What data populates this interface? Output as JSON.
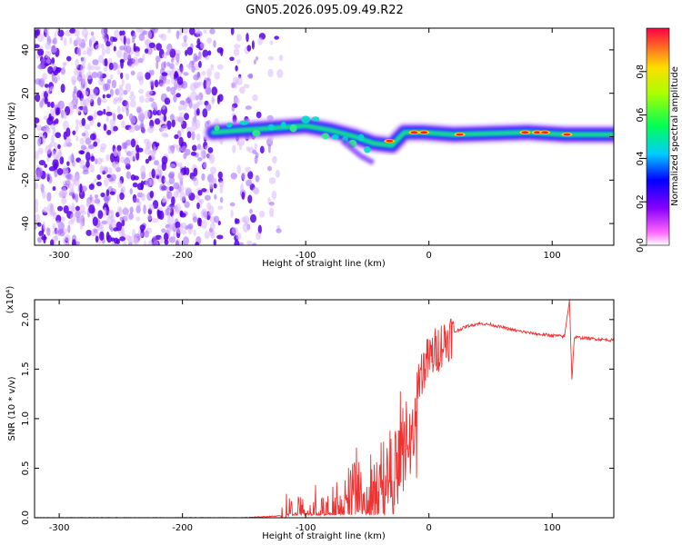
{
  "title": "GN05.2026.095.09.49.R22",
  "chart_data": [
    {
      "type": "heatmap",
      "xlabel": "Height of straight line (km)",
      "ylabel": "Frequency (Hz)",
      "xlim": [
        -320,
        150
      ],
      "ylim": [
        -50,
        50
      ],
      "xticks": [
        -300,
        -200,
        -100,
        0,
        100
      ],
      "yticks": [
        -40,
        -20,
        0,
        20,
        40
      ],
      "colorbar": {
        "label": "Normalized spectral amplitude",
        "range": [
          0,
          1
        ],
        "ticks": [
          "0.0",
          "0.2",
          "0.4",
          "0.6",
          "0.8"
        ],
        "tick_values": [
          0.0,
          0.2,
          0.4,
          0.6,
          0.8
        ],
        "colors": [
          "#ff33ff",
          "#7700ff",
          "#0000ff",
          "#00ffff",
          "#00ff00",
          "#ffff00",
          "#ff0000"
        ]
      },
      "noise_region": {
        "x_range": [
          -320,
          -120
        ],
        "freq_range": [
          -50,
          50
        ]
      },
      "ridge": [
        {
          "x": -175,
          "freq": 2
        },
        {
          "x": -150,
          "freq": 3
        },
        {
          "x": -125,
          "freq": 4
        },
        {
          "x": -100,
          "freq": 5
        },
        {
          "x": -80,
          "freq": 3
        },
        {
          "x": -60,
          "freq": 0
        },
        {
          "x": -45,
          "freq": -3
        },
        {
          "x": -30,
          "freq": -4
        },
        {
          "x": -20,
          "freq": 2
        },
        {
          "x": -5,
          "freq": 2
        },
        {
          "x": 20,
          "freq": 1
        },
        {
          "x": 80,
          "freq": 2
        },
        {
          "x": 110,
          "freq": 1
        },
        {
          "x": 150,
          "freq": 1
        }
      ]
    },
    {
      "type": "line",
      "xlabel": "Height of straight line (km)",
      "ylabel": "SNR (10 * v/v)",
      "y_scale": "(x10⁴)",
      "xlim": [
        -320,
        150
      ],
      "ylim": [
        0,
        2.2
      ],
      "xticks": [
        -300,
        -200,
        -100,
        0,
        100
      ],
      "yticks": [
        "0.0",
        "0.5",
        "1.0",
        "1.5",
        "2.0"
      ],
      "ytick_values": [
        0.0,
        0.5,
        1.0,
        1.5,
        2.0
      ],
      "color": "#ee3333",
      "series": [
        {
          "name": "SNR",
          "x": [
            -320,
            -150,
            -120,
            -110,
            -100,
            -90,
            -80,
            -70,
            -60,
            -55,
            -50,
            -40,
            -35,
            -30,
            -25,
            -20,
            -15,
            -10,
            -5,
            0,
            10,
            20,
            30,
            40,
            50,
            60,
            70,
            80,
            90,
            100,
            110,
            114,
            116,
            118,
            120,
            130,
            140,
            150
          ],
          "values": [
            0.0,
            0.0,
            0.02,
            0.05,
            0.12,
            0.15,
            0.2,
            0.25,
            0.4,
            0.45,
            0.35,
            0.5,
            0.6,
            0.75,
            0.9,
            1.05,
            1.2,
            1.35,
            1.5,
            1.6,
            1.75,
            1.87,
            1.93,
            1.96,
            1.95,
            1.92,
            1.89,
            1.87,
            1.85,
            1.84,
            1.83,
            2.2,
            1.4,
            1.82,
            1.82,
            1.81,
            1.8,
            1.79
          ]
        }
      ]
    }
  ]
}
